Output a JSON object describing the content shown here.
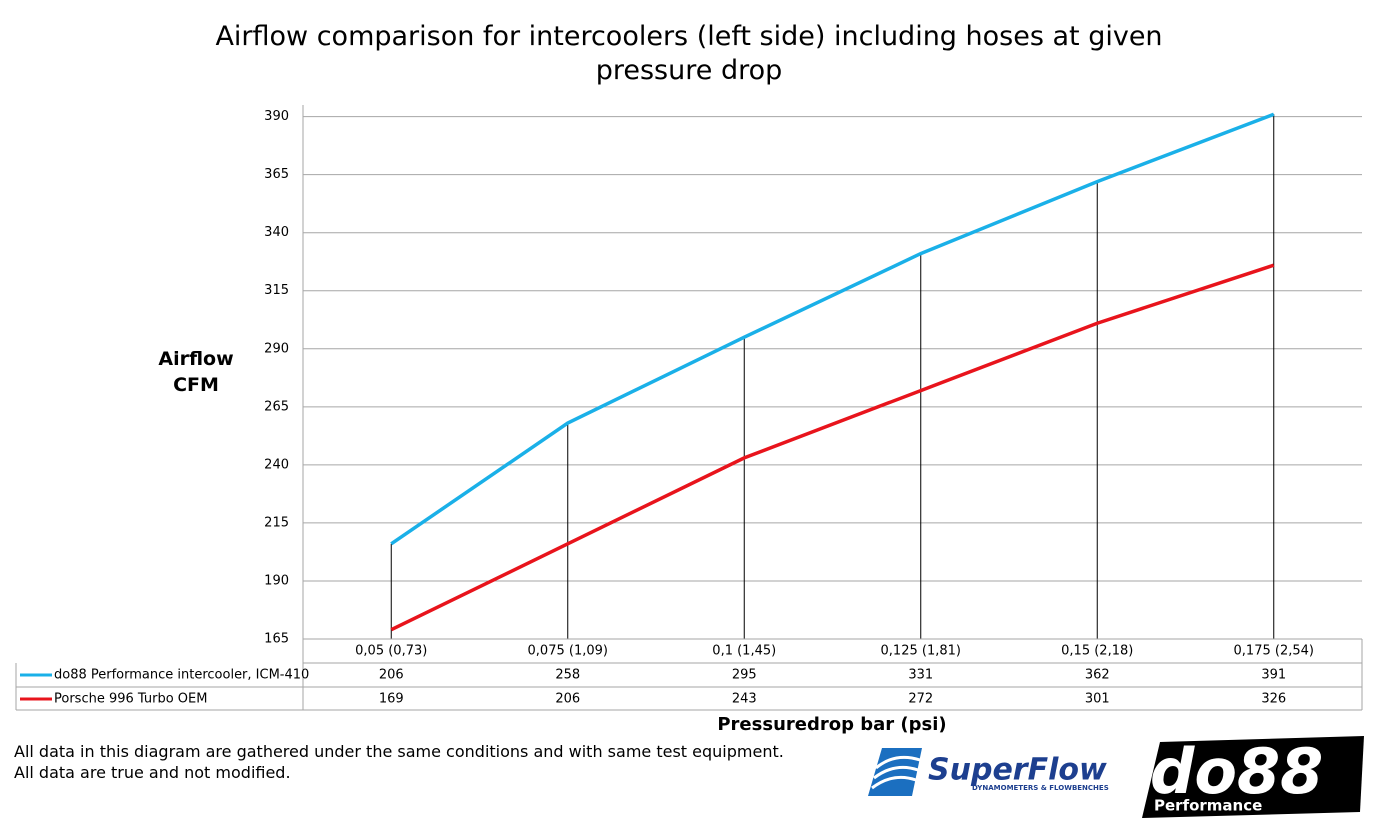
{
  "chart_data": {
    "type": "line",
    "title": "Airflow comparison for intercoolers (left side) including hoses at given pressure drop",
    "y_label": "Airflow CFM",
    "x_label": "Pressuredrop bar (psi)",
    "categories": [
      "0,05 (0,73)",
      "0,075 (1,09)",
      "0,1 (1,45)",
      "0,125 (1,81)",
      "0,15 (2,18)",
      "0,175 (2,54)"
    ],
    "series": [
      {
        "name": "do88 Performance intercooler, ICM-410",
        "color": "#1ab0e8",
        "values": [
          206,
          258,
          295,
          331,
          362,
          391
        ]
      },
      {
        "name": "Porsche 996 Turbo OEM",
        "color": "#e8141c",
        "values": [
          169,
          206,
          243,
          272,
          301,
          326
        ]
      }
    ],
    "ylim": [
      165,
      395
    ],
    "yticks": [
      165,
      190,
      215,
      240,
      265,
      290,
      315,
      340,
      365,
      390
    ],
    "grid": true,
    "data_table": true,
    "notes": [
      "All data in this diagram are gathered under the same conditions and with same test equipment.",
      "All data are true and not modified."
    ],
    "logos": {
      "superflow": "SuperFlow",
      "superflow_sub": "DYNAMOMETERS & FLOWBENCHES",
      "do88": "do88",
      "do88_sub": "Performance"
    }
  }
}
